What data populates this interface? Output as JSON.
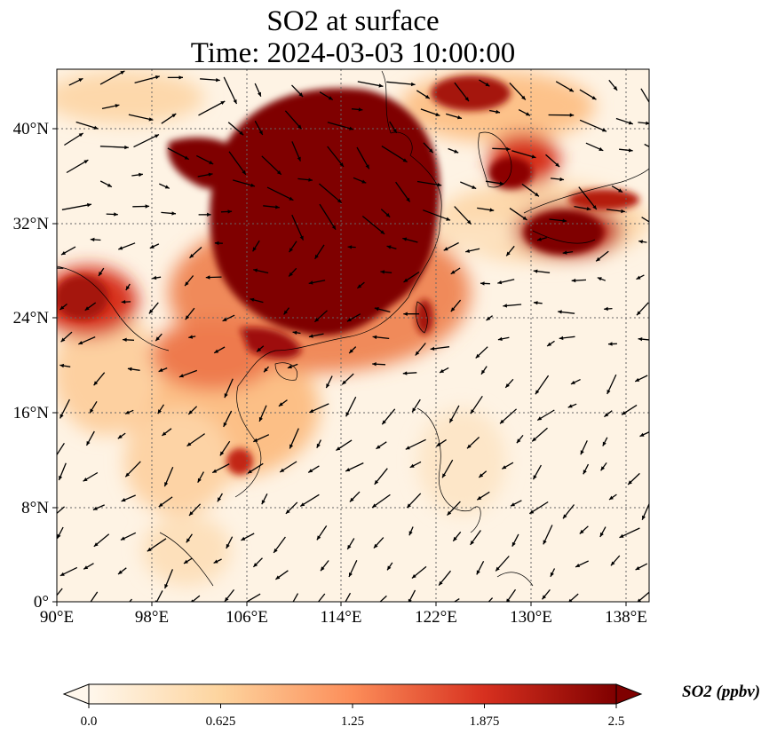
{
  "title": {
    "line1": "SO2 at surface",
    "line2": "Time: 2024-03-03 10:00:00"
  },
  "map": {
    "lon_range": [
      90,
      140
    ],
    "lat_range": [
      0,
      45
    ],
    "lon_ticks": [
      "90°E",
      "98°E",
      "106°E",
      "114°E",
      "122°E",
      "130°E",
      "138°E"
    ],
    "lat_ticks": [
      "0°",
      "8°N",
      "16°N",
      "24°N",
      "32°N",
      "40°N"
    ],
    "gridlines": "dotted",
    "coastlines": true,
    "wind_vectors": true
  },
  "colorbar": {
    "label": "SO2 (ppbv)",
    "ticks": [
      "0.0",
      "0.625",
      "1.25",
      "1.875",
      "2.5"
    ],
    "range": [
      0,
      2.5
    ],
    "colormap": "OrRd",
    "extend": "both",
    "colors": [
      "#fff7ec",
      "#fdd49e",
      "#fc8d59",
      "#d7301f",
      "#7f0000"
    ]
  }
}
